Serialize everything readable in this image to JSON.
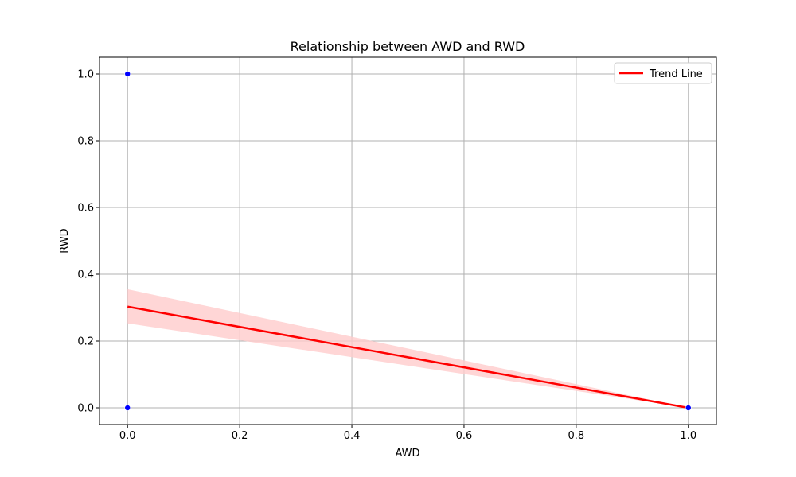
{
  "chart_data": {
    "type": "scatter",
    "title": "Relationship between AWD and RWD",
    "xlabel": "AWD",
    "ylabel": "RWD",
    "xlim": [
      -0.05,
      1.05
    ],
    "ylim": [
      -0.05,
      1.05
    ],
    "xticks": [
      0.0,
      0.2,
      0.4,
      0.6,
      0.8,
      1.0
    ],
    "yticks": [
      0.0,
      0.2,
      0.4,
      0.6,
      0.8,
      1.0
    ],
    "xtick_labels": [
      "0.0",
      "0.2",
      "0.4",
      "0.6",
      "0.8",
      "1.0"
    ],
    "ytick_labels": [
      "0.0",
      "0.2",
      "0.4",
      "0.6",
      "0.8",
      "1.0"
    ],
    "grid": true,
    "legend_position": "top-right",
    "points": [
      {
        "x": 0.0,
        "y": 1.0
      },
      {
        "x": 0.0,
        "y": 0.0
      },
      {
        "x": 1.0,
        "y": 0.0
      }
    ],
    "trend_line": {
      "name": "Trend Line",
      "x": [
        0.0,
        1.0
      ],
      "y": [
        0.303,
        0.0
      ],
      "ci_upper": [
        0.355,
        0.0
      ],
      "ci_lower": [
        0.253,
        0.0
      ]
    },
    "colors": {
      "points": "#0000ff",
      "trend": "#ff0000",
      "band": "#ffcccc",
      "grid": "#b0b0b0"
    }
  }
}
